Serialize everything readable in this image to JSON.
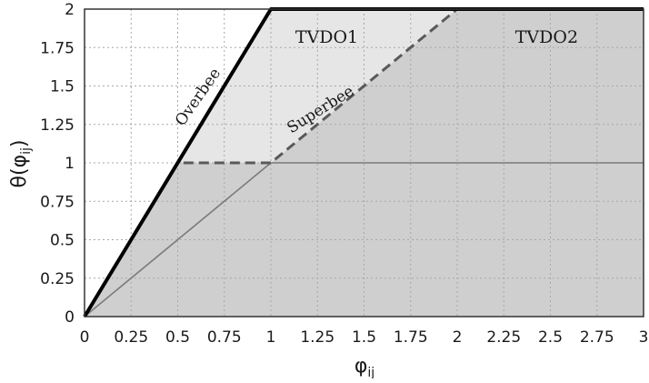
{
  "chart_data": {
    "type": "line",
    "xlabel": "φ",
    "xlabel_sub": "ij",
    "ylabel_pre": "θ(φ",
    "ylabel_sub": "ij",
    "ylabel_post": ")",
    "xlim": [
      0,
      3
    ],
    "ylim": [
      0,
      2
    ],
    "x_ticks": [
      0,
      0.25,
      0.5,
      0.75,
      1,
      1.25,
      1.5,
      1.75,
      2,
      2.25,
      2.5,
      2.75,
      3
    ],
    "x_tick_labels": [
      "0",
      "0.25",
      "0.5",
      "0.75",
      "1",
      "1.25",
      "1.5",
      "1.75",
      "2",
      "2.25",
      "2.5",
      "2.75",
      "3"
    ],
    "y_ticks": [
      0,
      0.25,
      0.5,
      0.75,
      1,
      1.25,
      1.5,
      1.75,
      2
    ],
    "y_tick_labels": [
      "0",
      "0.25",
      "0.5",
      "0.75",
      "1",
      "1.25",
      "1.5",
      "1.75",
      "2"
    ],
    "grid": true,
    "regions": [
      {
        "label": "TVDO2",
        "fill": "#cfcfcf",
        "points": [
          [
            0,
            0
          ],
          [
            0.5,
            1
          ],
          [
            1,
            1
          ],
          [
            2,
            2
          ],
          [
            3,
            2
          ],
          [
            3,
            0
          ]
        ]
      },
      {
        "label": "TVDO1",
        "fill": "#e6e6e6",
        "points": [
          [
            0.5,
            1
          ],
          [
            1,
            2
          ],
          [
            2,
            2
          ],
          [
            1,
            1
          ]
        ]
      }
    ],
    "region_labels": [
      {
        "text": "TVDO1",
        "x": 1.3,
        "y": 1.78
      },
      {
        "text": "TVDO2",
        "x": 2.48,
        "y": 1.78
      }
    ],
    "series": [
      {
        "name": "Overbee",
        "x": [
          0,
          1,
          3
        ],
        "y": [
          0,
          2,
          2
        ],
        "color": "#000000",
        "style": "solid-thick"
      },
      {
        "name": "Superbee",
        "x": [
          0,
          0.5,
          1,
          2,
          3
        ],
        "y": [
          0,
          1,
          1,
          2,
          2
        ],
        "color": "#5a5a5a",
        "style": "dashed"
      },
      {
        "name": "",
        "x": [
          0,
          1,
          3
        ],
        "y": [
          0,
          1,
          1
        ],
        "color": "#7a7a7a",
        "style": "solid-thin"
      }
    ],
    "curve_labels": [
      {
        "text": "Overbee",
        "x": 0.63,
        "y": 1.41,
        "angle": -55
      },
      {
        "text": "Superbee",
        "x": 1.28,
        "y": 1.32,
        "angle": -32
      }
    ]
  }
}
